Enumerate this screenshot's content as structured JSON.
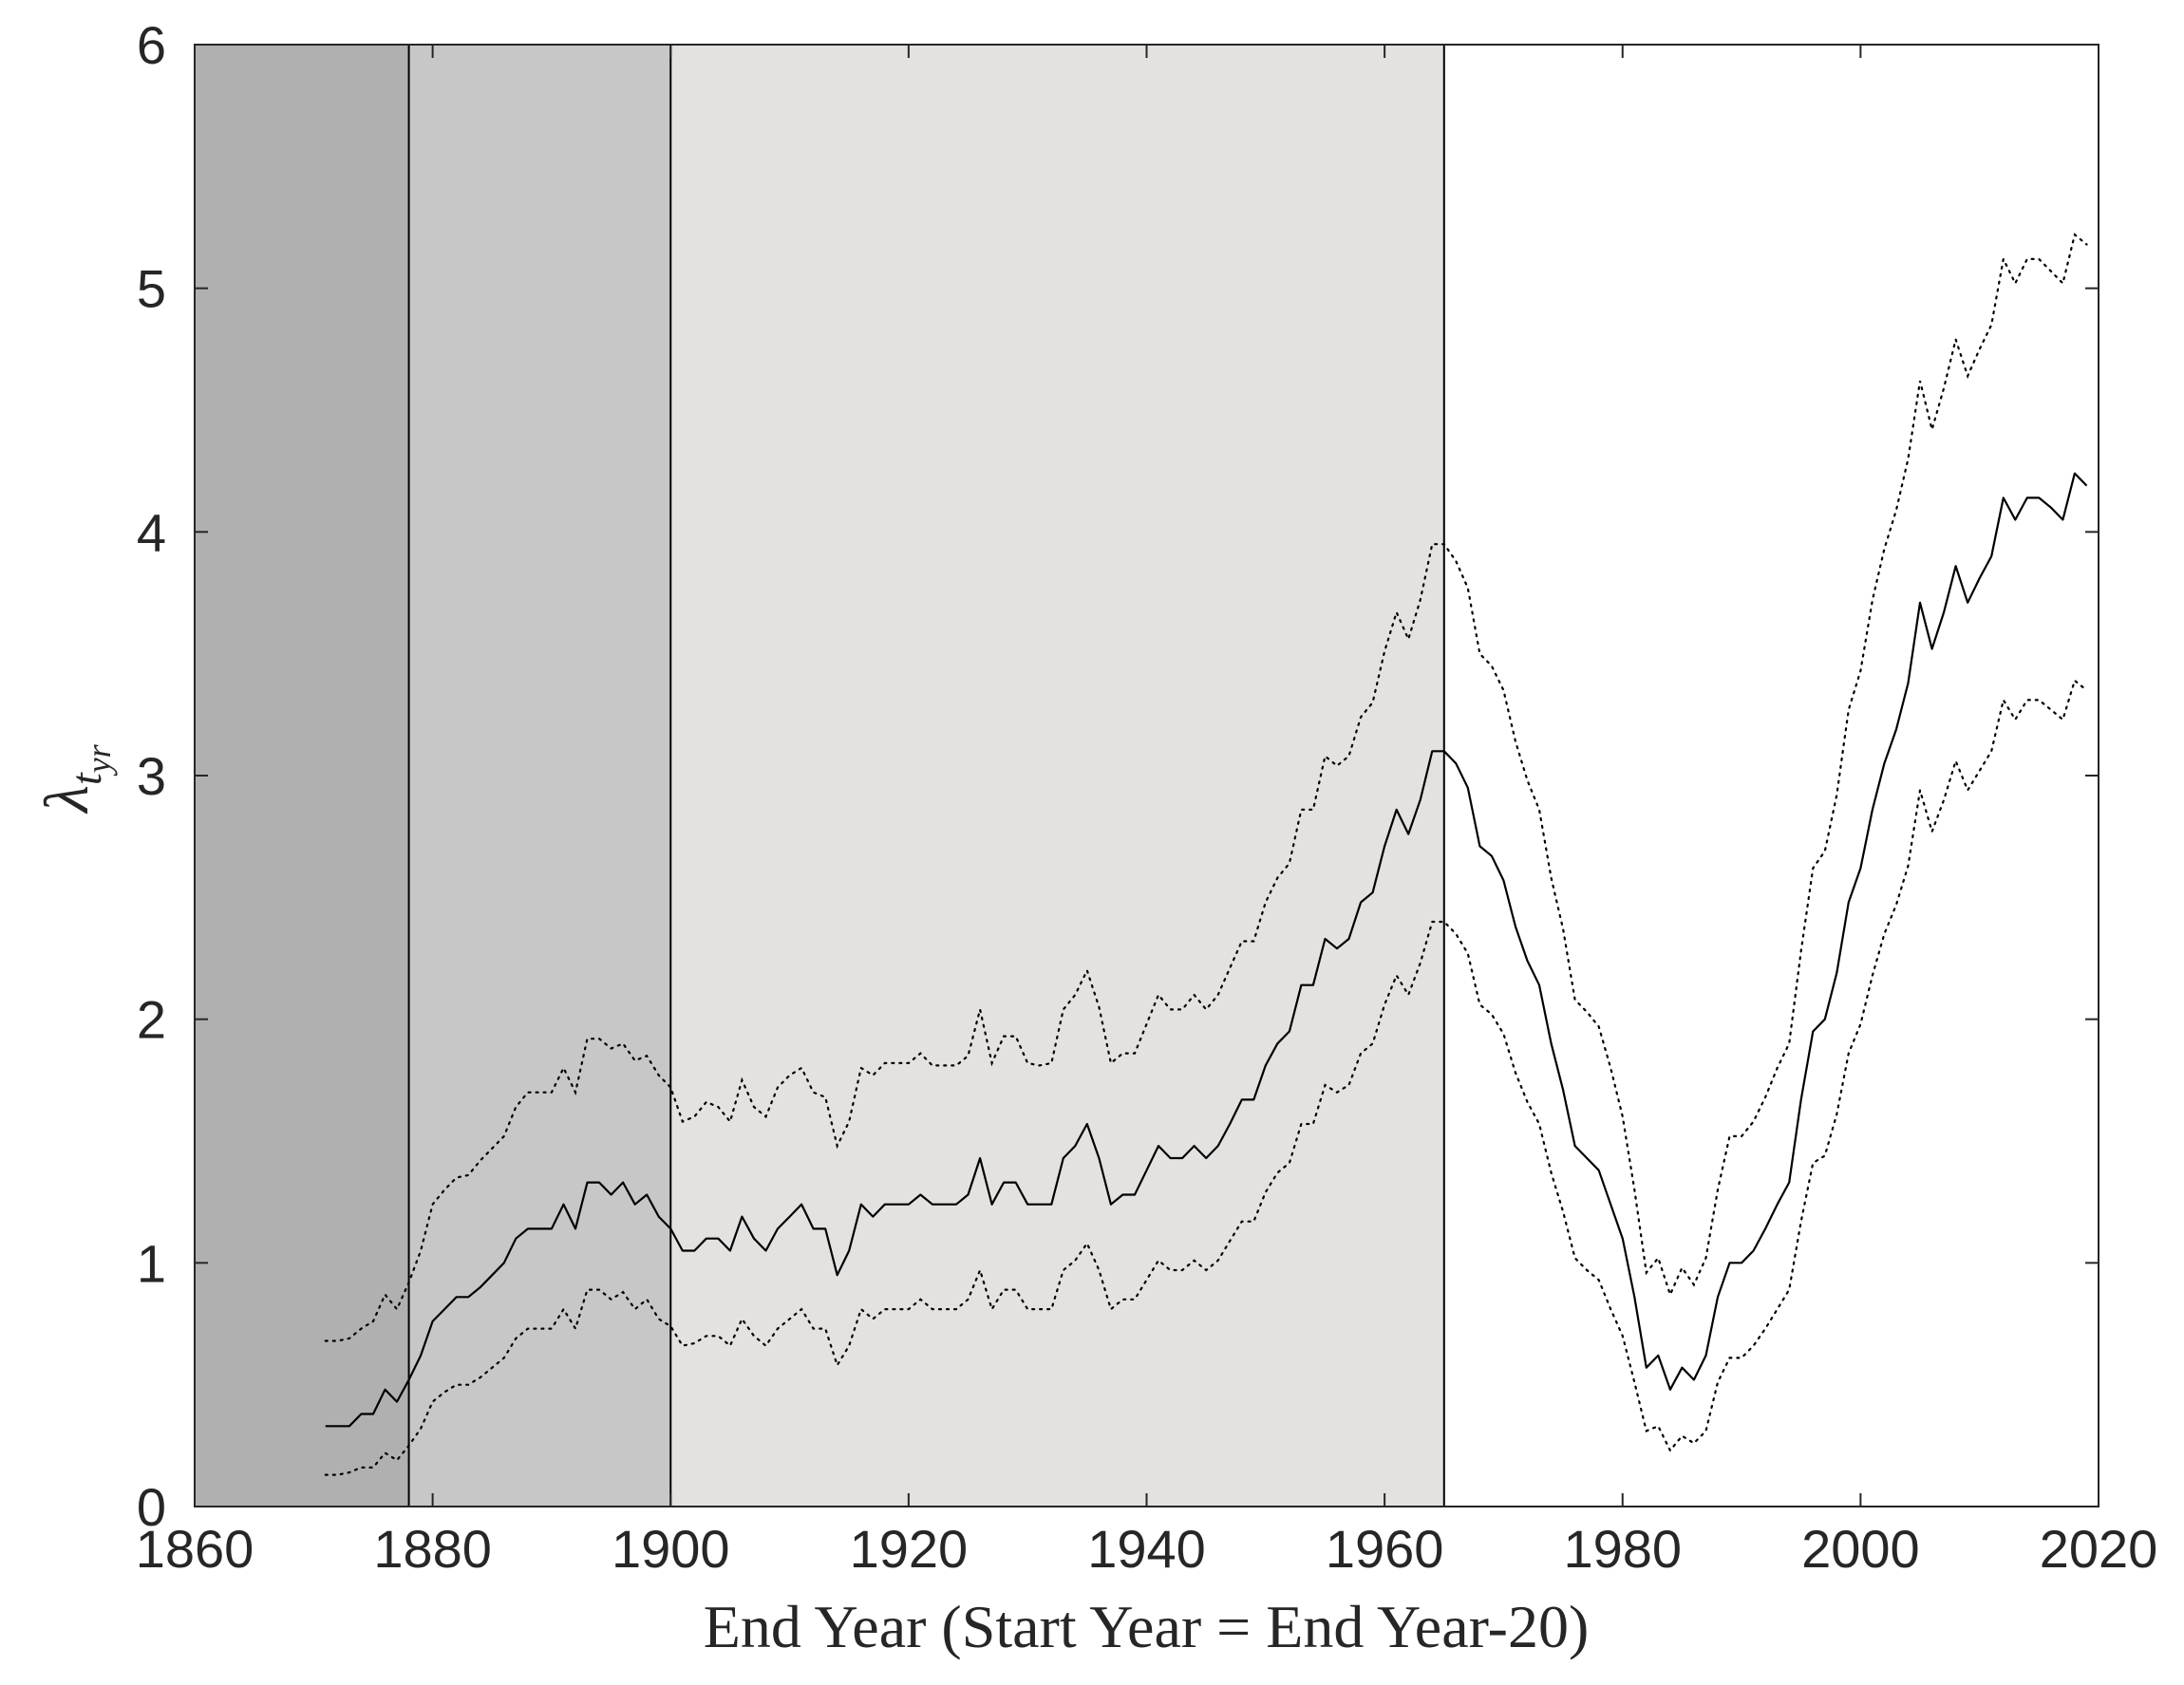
{
  "chart_data": {
    "type": "line",
    "title": "",
    "xlabel": "End Year (Start Year = End Year-20)",
    "ylabel": {
      "main": "λ",
      "subscript": "t",
      "subsubscript": "yr"
    },
    "xlim": [
      1860,
      2020
    ],
    "ylim": [
      0,
      6
    ],
    "xticks": [
      "1860",
      "1880",
      "1900",
      "1920",
      "1940",
      "1960",
      "1980",
      "2000",
      "2020"
    ],
    "yticks": [
      "0",
      "1",
      "2",
      "3",
      "4",
      "5",
      "6"
    ],
    "grid": false,
    "legend": "none",
    "shaded_periods": [
      {
        "x_start": 1860,
        "x_end": 1878,
        "color": "#b0b0b0"
      },
      {
        "x_start": 1878,
        "x_end": 1900,
        "color": "#c8c7c8"
      },
      {
        "x_start": 1900,
        "x_end": 1965,
        "color": "#e3e2e1"
      }
    ],
    "vertical_lines": [
      1878,
      1900,
      1965
    ],
    "x": [
      1871,
      1872,
      1873,
      1874,
      1875,
      1876,
      1877,
      1878,
      1879,
      1880,
      1881,
      1882,
      1883,
      1884,
      1885,
      1886,
      1887,
      1888,
      1889,
      1890,
      1891,
      1892,
      1893,
      1894,
      1895,
      1896,
      1897,
      1898,
      1899,
      1900,
      1901,
      1902,
      1903,
      1904,
      1905,
      1906,
      1907,
      1908,
      1909,
      1910,
      1911,
      1912,
      1913,
      1914,
      1915,
      1916,
      1917,
      1918,
      1919,
      1920,
      1921,
      1922,
      1923,
      1924,
      1925,
      1926,
      1927,
      1928,
      1929,
      1930,
      1931,
      1932,
      1933,
      1934,
      1935,
      1936,
      1937,
      1938,
      1939,
      1940,
      1941,
      1942,
      1943,
      1944,
      1945,
      1946,
      1947,
      1948,
      1949,
      1950,
      1951,
      1952,
      1953,
      1954,
      1955,
      1956,
      1957,
      1958,
      1959,
      1960,
      1961,
      1962,
      1963,
      1964,
      1965,
      1966,
      1967,
      1968,
      1969,
      1970,
      1971,
      1972,
      1973,
      1974,
      1975,
      1976,
      1977,
      1978,
      1979,
      1980,
      1981,
      1982,
      1983,
      1984,
      1985,
      1986,
      1987,
      1988,
      1989,
      1990,
      1991,
      1992,
      1993,
      1994,
      1995,
      1996,
      1997,
      1998,
      1999,
      2000,
      2001,
      2002,
      2003,
      2004,
      2005,
      2006,
      2007,
      2008,
      2009,
      2010,
      2011,
      2012,
      2013,
      2014,
      2015,
      2016,
      2017,
      2018,
      2019
    ],
    "series": [
      {
        "style": "solid",
        "values": [
          0.33,
          0.33,
          0.33,
          0.38,
          0.38,
          0.48,
          0.43,
          0.52,
          0.62,
          0.76,
          0.81,
          0.86,
          0.86,
          0.9,
          0.95,
          1.0,
          1.1,
          1.14,
          1.14,
          1.14,
          1.24,
          1.14,
          1.33,
          1.33,
          1.28,
          1.33,
          1.24,
          1.28,
          1.19,
          1.14,
          1.05,
          1.05,
          1.1,
          1.1,
          1.05,
          1.19,
          1.1,
          1.05,
          1.14,
          1.19,
          1.24,
          1.14,
          1.14,
          0.95,
          1.05,
          1.24,
          1.19,
          1.24,
          1.24,
          1.24,
          1.28,
          1.24,
          1.24,
          1.24,
          1.28,
          1.43,
          1.24,
          1.33,
          1.33,
          1.24,
          1.24,
          1.24,
          1.43,
          1.48,
          1.57,
          1.43,
          1.24,
          1.28,
          1.28,
          1.38,
          1.48,
          1.43,
          1.43,
          1.48,
          1.43,
          1.48,
          1.57,
          1.67,
          1.67,
          1.81,
          1.9,
          1.95,
          2.14,
          2.14,
          2.33,
          2.29,
          2.33,
          2.48,
          2.52,
          2.71,
          2.86,
          2.76,
          2.9,
          3.1,
          3.1,
          3.05,
          2.95,
          2.71,
          2.67,
          2.57,
          2.38,
          2.24,
          2.14,
          1.9,
          1.71,
          1.48,
          1.43,
          1.38,
          1.24,
          1.1,
          0.86,
          0.57,
          0.62,
          0.48,
          0.57,
          0.52,
          0.62,
          0.86,
          1.0,
          1.0,
          1.05,
          1.14,
          1.24,
          1.33,
          1.67,
          1.95,
          2.0,
          2.19,
          2.48,
          2.62,
          2.86,
          3.05,
          3.19,
          3.38,
          3.71,
          3.52,
          3.67,
          3.86,
          3.71,
          3.81,
          3.9,
          4.14,
          4.05,
          4.14,
          4.14,
          4.1,
          4.05,
          4.24,
          4.19
        ]
      },
      {
        "style": "dotted",
        "values": [
          0.68,
          0.68,
          0.69,
          0.73,
          0.76,
          0.87,
          0.81,
          0.92,
          1.05,
          1.24,
          1.3,
          1.35,
          1.36,
          1.42,
          1.47,
          1.52,
          1.64,
          1.7,
          1.7,
          1.7,
          1.8,
          1.7,
          1.92,
          1.92,
          1.88,
          1.9,
          1.83,
          1.85,
          1.77,
          1.72,
          1.58,
          1.6,
          1.66,
          1.64,
          1.58,
          1.75,
          1.64,
          1.6,
          1.72,
          1.77,
          1.8,
          1.7,
          1.68,
          1.48,
          1.58,
          1.8,
          1.77,
          1.82,
          1.82,
          1.82,
          1.86,
          1.81,
          1.81,
          1.81,
          1.85,
          2.04,
          1.82,
          1.93,
          1.93,
          1.82,
          1.81,
          1.82,
          2.04,
          2.1,
          2.2,
          2.05,
          1.82,
          1.86,
          1.86,
          1.98,
          2.1,
          2.04,
          2.04,
          2.1,
          2.04,
          2.1,
          2.21,
          2.32,
          2.32,
          2.48,
          2.58,
          2.64,
          2.86,
          2.86,
          3.08,
          3.04,
          3.08,
          3.24,
          3.3,
          3.51,
          3.67,
          3.56,
          3.72,
          3.95,
          3.95,
          3.88,
          3.77,
          3.5,
          3.45,
          3.35,
          3.14,
          2.98,
          2.86,
          2.58,
          2.37,
          2.08,
          2.03,
          1.97,
          1.8,
          1.6,
          1.3,
          0.96,
          1.02,
          0.87,
          0.98,
          0.91,
          1.02,
          1.3,
          1.52,
          1.52,
          1.58,
          1.68,
          1.8,
          1.9,
          2.28,
          2.62,
          2.69,
          2.92,
          3.27,
          3.43,
          3.72,
          3.93,
          4.09,
          4.3,
          4.62,
          4.42,
          4.59,
          4.79,
          4.64,
          4.75,
          4.85,
          5.12,
          5.02,
          5.12,
          5.12,
          5.07,
          5.02,
          5.22,
          5.18
        ]
      },
      {
        "style": "dotted",
        "values": [
          0.13,
          0.13,
          0.14,
          0.16,
          0.16,
          0.22,
          0.19,
          0.25,
          0.32,
          0.43,
          0.47,
          0.5,
          0.5,
          0.53,
          0.57,
          0.61,
          0.69,
          0.73,
          0.73,
          0.73,
          0.81,
          0.73,
          0.89,
          0.89,
          0.85,
          0.88,
          0.81,
          0.85,
          0.77,
          0.74,
          0.66,
          0.67,
          0.7,
          0.7,
          0.66,
          0.77,
          0.7,
          0.66,
          0.73,
          0.77,
          0.81,
          0.73,
          0.73,
          0.58,
          0.66,
          0.81,
          0.77,
          0.81,
          0.81,
          0.81,
          0.85,
          0.81,
          0.81,
          0.81,
          0.85,
          0.97,
          0.81,
          0.89,
          0.89,
          0.81,
          0.81,
          0.81,
          0.97,
          1.01,
          1.08,
          0.97,
          0.81,
          0.85,
          0.85,
          0.93,
          1.01,
          0.97,
          0.97,
          1.01,
          0.97,
          1.01,
          1.09,
          1.17,
          1.17,
          1.29,
          1.37,
          1.41,
          1.57,
          1.57,
          1.73,
          1.7,
          1.73,
          1.86,
          1.9,
          2.06,
          2.18,
          2.1,
          2.23,
          2.4,
          2.4,
          2.35,
          2.27,
          2.06,
          2.02,
          1.94,
          1.78,
          1.66,
          1.57,
          1.37,
          1.21,
          1.02,
          0.97,
          0.93,
          0.81,
          0.7,
          0.51,
          0.31,
          0.33,
          0.23,
          0.29,
          0.26,
          0.31,
          0.51,
          0.61,
          0.61,
          0.66,
          0.73,
          0.81,
          0.89,
          1.17,
          1.41,
          1.44,
          1.61,
          1.86,
          1.98,
          2.18,
          2.35,
          2.47,
          2.63,
          2.94,
          2.77,
          2.9,
          3.06,
          2.94,
          3.02,
          3.1,
          3.31,
          3.23,
          3.31,
          3.31,
          3.27,
          3.23,
          3.39,
          3.35
        ]
      }
    ]
  }
}
